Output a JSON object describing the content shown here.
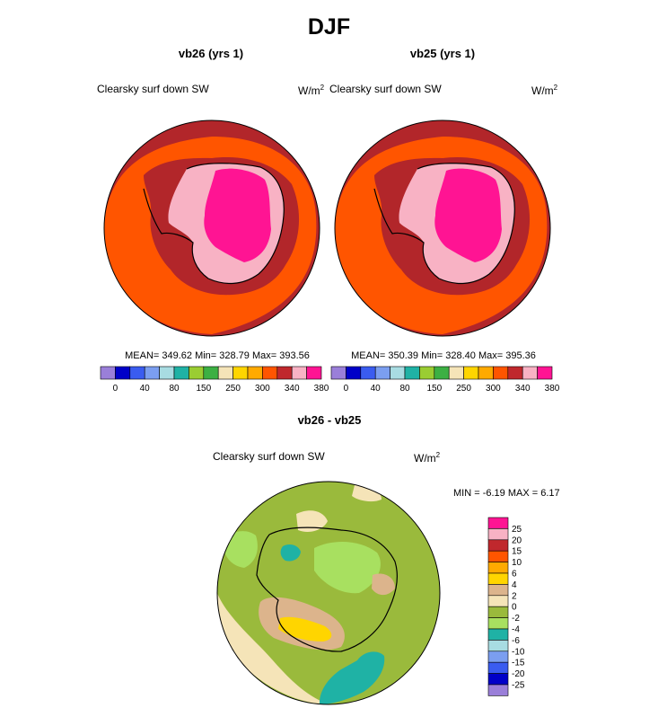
{
  "title": "DJF",
  "chart_data": [
    {
      "type": "heatmap",
      "title": "vb26 (yrs 1)",
      "left_label": "Clearsky surf down SW",
      "units": "W/m",
      "units_sup": "2",
      "stats": {
        "mean": "349.62",
        "min": "328.79",
        "max": "393.56"
      },
      "stats_text": "MEAN= 349.62  Min= 328.79  Max= 393.56",
      "colorbar": {
        "colors": [
          "#9a7fd9",
          "#0000c8",
          "#3a5cf0",
          "#7b9ef0",
          "#a8dce2",
          "#1fb2a5",
          "#9acd32",
          "#3cb043",
          "#f5e4b8",
          "#ffd500",
          "#ffaa00",
          "#ff5500",
          "#c0282d",
          "#f8b2c4",
          "#ff1493"
        ],
        "tick_labels": [
          "0",
          "40",
          "80",
          "150",
          "250",
          "300",
          "340",
          "380"
        ]
      }
    },
    {
      "type": "heatmap",
      "title": "vb25 (yrs 1)",
      "left_label": "Clearsky surf down SW",
      "units": "W/m",
      "units_sup": "2",
      "stats": {
        "mean": "350.39",
        "min": "328.40",
        "max": "395.36"
      },
      "stats_text": "MEAN= 350.39  Min= 328.40  Max= 395.36",
      "colorbar": {
        "colors": [
          "#9a7fd9",
          "#0000c8",
          "#3a5cf0",
          "#7b9ef0",
          "#a8dce2",
          "#1fb2a5",
          "#9acd32",
          "#3cb043",
          "#f5e4b8",
          "#ffd500",
          "#ffaa00",
          "#ff5500",
          "#c0282d",
          "#f8b2c4",
          "#ff1493"
        ],
        "tick_labels": [
          "0",
          "40",
          "80",
          "150",
          "250",
          "300",
          "340",
          "380"
        ]
      }
    },
    {
      "type": "heatmap",
      "title": "vb26 - vb25",
      "left_label": "Clearsky surf down SW",
      "units": "W/m",
      "units_sup": "2",
      "stats": {
        "min": "-6.19",
        "max": "6.17"
      },
      "stats_text": "MIN =  -6.19 MAX =   6.17",
      "colorbar": {
        "colors": [
          "#ff1493",
          "#f8b2c4",
          "#c0282d",
          "#ff5500",
          "#ffaa00",
          "#ffd500",
          "#dcb48c",
          "#f5e4b8",
          "#9aba3c",
          "#a8e060",
          "#1fb2a5",
          "#a8dce2",
          "#7b9ef0",
          "#3a5cf0",
          "#0000c8",
          "#9a7fd9"
        ],
        "tick_labels": [
          "25",
          "20",
          "15",
          "10",
          "6",
          "4",
          "2",
          "0",
          "-2",
          "-4",
          "-6",
          "-10",
          "-15",
          "-20",
          "-25"
        ]
      }
    }
  ]
}
